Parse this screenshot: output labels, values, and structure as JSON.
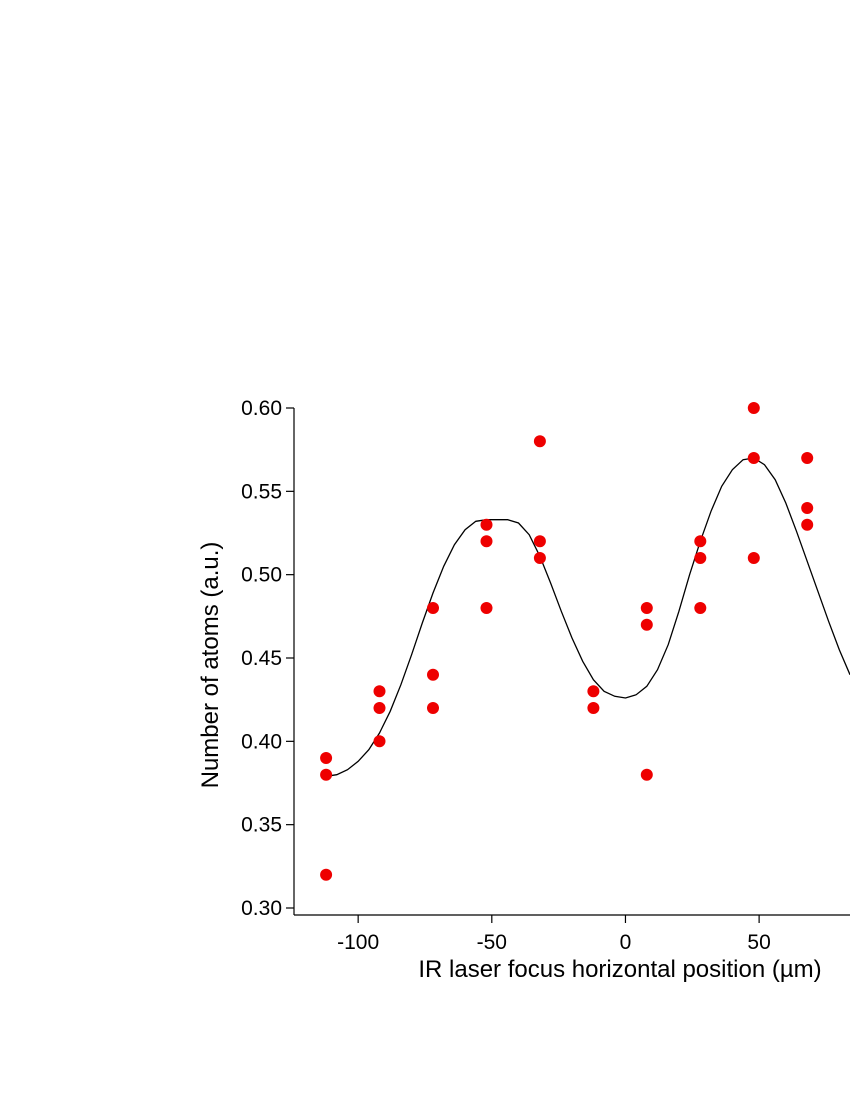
{
  "chart_data": {
    "type": "scatter",
    "xlabel": "IR laser focus horizontal position (µm)",
    "ylabel": "Number of atoms (a.u.)",
    "xlim": [
      -124,
      84
    ],
    "ylim": [
      0.295,
      0.6
    ],
    "x_ticks": [
      -100,
      -50,
      0,
      50
    ],
    "x_tick_labels": [
      "-100",
      "-50",
      "0",
      "50"
    ],
    "y_ticks": [
      0.3,
      0.35,
      0.4,
      0.45,
      0.5,
      0.55,
      0.6
    ],
    "y_tick_labels": [
      "0.30",
      "0.35",
      "0.40",
      "0.45",
      "0.50",
      "0.55",
      "0.60"
    ],
    "grid": false,
    "colors": {
      "points": "#ee0000",
      "fit": "#000000",
      "axis": "#000000"
    },
    "series": [
      {
        "type": "scatter",
        "x": [
          -112,
          -112,
          -112,
          -92,
          -92,
          -92,
          -72,
          -72,
          -72,
          -52,
          -52,
          -52,
          -32,
          -32,
          -32,
          -12,
          -12,
          8,
          8,
          8,
          28,
          28,
          28,
          48,
          48,
          48,
          68,
          68,
          68
        ],
        "y": [
          0.39,
          0.38,
          0.32,
          0.43,
          0.42,
          0.4,
          0.48,
          0.44,
          0.42,
          0.53,
          0.52,
          0.48,
          0.58,
          0.52,
          0.51,
          0.43,
          0.42,
          0.48,
          0.47,
          0.38,
          0.52,
          0.51,
          0.48,
          0.6,
          0.57,
          0.51,
          0.57,
          0.54,
          0.53
        ]
      },
      {
        "type": "line",
        "x": [
          -112,
          -108,
          -104,
          -100,
          -96,
          -92,
          -88,
          -84,
          -80,
          -76,
          -72,
          -68,
          -64,
          -60,
          -56,
          -52,
          -48,
          -44,
          -40,
          -36,
          -32,
          -28,
          -24,
          -20,
          -16,
          -12,
          -8,
          -4,
          0,
          4,
          8,
          12,
          16,
          20,
          24,
          28,
          32,
          36,
          40,
          44,
          48,
          52,
          56,
          60,
          64,
          68,
          72,
          76,
          80,
          84
        ],
        "y": [
          0.379,
          0.38,
          0.383,
          0.388,
          0.395,
          0.405,
          0.418,
          0.434,
          0.452,
          0.471,
          0.489,
          0.505,
          0.518,
          0.527,
          0.532,
          0.533,
          0.533,
          0.533,
          0.531,
          0.524,
          0.511,
          0.495,
          0.478,
          0.462,
          0.448,
          0.437,
          0.43,
          0.427,
          0.426,
          0.428,
          0.433,
          0.443,
          0.458,
          0.478,
          0.5,
          0.52,
          0.538,
          0.553,
          0.563,
          0.569,
          0.57,
          0.566,
          0.557,
          0.543,
          0.526,
          0.508,
          0.49,
          0.472,
          0.455,
          0.44
        ]
      }
    ]
  }
}
